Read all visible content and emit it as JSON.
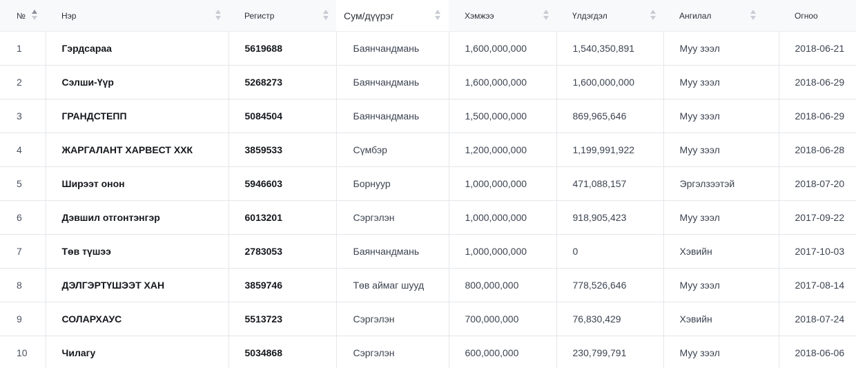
{
  "table": {
    "columns": [
      {
        "key": "no",
        "label": "№",
        "sort": "asc"
      },
      {
        "key": "name",
        "label": "Нэр",
        "sort": "none"
      },
      {
        "key": "register",
        "label": "Регистр",
        "sort": "none"
      },
      {
        "key": "soum",
        "label": "Сум/дүүрэг",
        "sort": "none"
      },
      {
        "key": "amount",
        "label": "Хэмжээ",
        "sort": "none"
      },
      {
        "key": "balance",
        "label": "Үлдэгдэл",
        "sort": "none"
      },
      {
        "key": "category",
        "label": "Ангилал",
        "sort": "none"
      },
      {
        "key": "date",
        "label": "Огноо",
        "sort": "none"
      }
    ],
    "rows": [
      {
        "no": "1",
        "name": "Гэрдсараа",
        "register": "5619688",
        "soum": "Баянчандмань",
        "amount": "1,600,000,000",
        "balance": "1,540,350,891",
        "category": "Муу зээл",
        "date": "2018-06-21"
      },
      {
        "no": "2",
        "name": "Сэлши-Үүр",
        "register": "5268273",
        "soum": "Баянчандмань",
        "amount": "1,600,000,000",
        "balance": "1,600,000,000",
        "category": "Муу зээл",
        "date": "2018-06-29"
      },
      {
        "no": "3",
        "name": "ГРАНДСТЕПП",
        "register": "5084504",
        "soum": "Баянчандмань",
        "amount": "1,500,000,000",
        "balance": "869,965,646",
        "category": "Муу зээл",
        "date": "2018-06-29"
      },
      {
        "no": "4",
        "name": "ЖАРГАЛАНТ ХАРВЕСТ ХХК",
        "register": "3859533",
        "soum": "Сүмбэр",
        "amount": "1,200,000,000",
        "balance": "1,199,991,922",
        "category": "Муу зээл",
        "date": "2018-06-28"
      },
      {
        "no": "5",
        "name": "Ширээт онон",
        "register": "5946603",
        "soum": "Борнуур",
        "amount": "1,000,000,000",
        "balance": "471,088,157",
        "category": "Эргэлзээтэй",
        "date": "2018-07-20"
      },
      {
        "no": "6",
        "name": "Дэвшил отгонтэнгэр",
        "register": "6013201",
        "soum": "Сэргэлэн",
        "amount": "1,000,000,000",
        "balance": "918,905,423",
        "category": "Муу зээл",
        "date": "2017-09-22"
      },
      {
        "no": "7",
        "name": "Төв түшээ",
        "register": "2783053",
        "soum": "Баянчандмань",
        "amount": "1,000,000,000",
        "balance": "0",
        "category": "Хэвийн",
        "date": "2017-10-03"
      },
      {
        "no": "8",
        "name": "ДЭЛГЭРТҮШЭЭТ ХАН",
        "register": "3859746",
        "soum": "Төв аймаг шууд",
        "amount": "800,000,000",
        "balance": "778,526,646",
        "category": "Муу зээл",
        "date": "2017-08-14"
      },
      {
        "no": "9",
        "name": "СОЛАРХАУС",
        "register": "5513723",
        "soum": "Сэргэлэн",
        "amount": "700,000,000",
        "balance": "76,830,429",
        "category": "Хэвийн",
        "date": "2018-07-24"
      },
      {
        "no": "10",
        "name": "Чилагу",
        "register": "5034868",
        "soum": "Сэргэлэн",
        "amount": "600,000,000",
        "balance": "230,799,791",
        "category": "Муу зээл",
        "date": "2018-06-06"
      }
    ]
  }
}
